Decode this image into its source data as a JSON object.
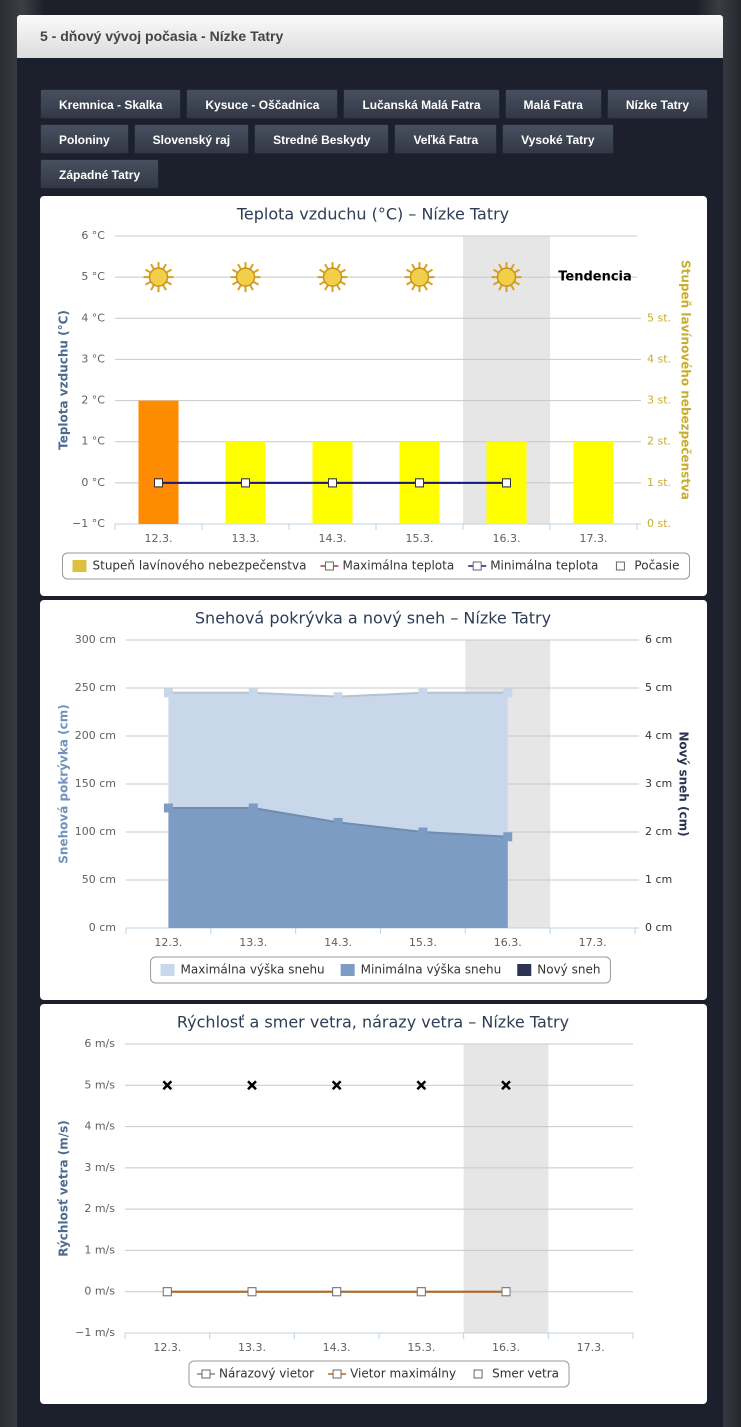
{
  "header": {
    "title": "5 - dňový vývoj počasia - Nízke Tatry"
  },
  "buttons": [
    "Kremnica - Skalka",
    "Kysuce - Oščadnica",
    "Lučanská Malá Fatra",
    "Malá Fatra",
    "Nízke Tatry",
    "Poloniny",
    "Slovenský raj",
    "Stredné Beskydy",
    "Veľká Fatra",
    "Vysoké Tatry",
    "Západné Tatry"
  ],
  "chart_data": [
    {
      "type": "combo",
      "title": "Teplota vzduchu (°C) – Nízke Tatry",
      "y_axis_title": "Teplota vzduchu (°C)",
      "y2_axis_title": "Stupeň lavínového nebezpečenstva",
      "annotation": "Tendencia",
      "plot_band": "16.3.",
      "grid": true,
      "legend": "bottom",
      "categories": [
        "12.3.",
        "13.3.",
        "14.3.",
        "15.3.",
        "16.3.",
        "17.3."
      ],
      "ylim": [
        -1,
        6
      ],
      "yticks": [
        {
          "value": -1,
          "label": "−1 °C"
        },
        {
          "value": 0,
          "label": "0 °C"
        },
        {
          "value": 1,
          "label": "1 °C"
        },
        {
          "value": 2,
          "label": "2 °C"
        },
        {
          "value": 3,
          "label": "3 °C"
        },
        {
          "value": 4,
          "label": "4 °C"
        },
        {
          "value": 5,
          "label": "5 °C"
        },
        {
          "value": 6,
          "label": "6 °C"
        }
      ],
      "y2lim": [
        0,
        7
      ],
      "y2ticks": [
        {
          "value": 0,
          "label": "0 st."
        },
        {
          "value": 1,
          "label": "1 st."
        },
        {
          "value": 2,
          "label": "2 st."
        },
        {
          "value": 3,
          "label": "3 st."
        },
        {
          "value": 4,
          "label": "4 st."
        },
        {
          "value": 5,
          "label": "5 st."
        }
      ],
      "series": [
        {
          "name": "Stupeň lavínového nebezpečenstva",
          "type": "column",
          "axis": "y2",
          "color": "#dcc13c",
          "colors": [
            "#ff8c00",
            "#ffff00",
            "#ffff00",
            "#ffff00",
            "#ffff00",
            "#ffff00"
          ],
          "values": [
            3,
            2,
            2,
            2,
            2,
            2
          ]
        },
        {
          "name": "Maximálna teplota",
          "type": "line",
          "color": "#b03a3a",
          "values": [
            0,
            0,
            0,
            0,
            0,
            null
          ]
        },
        {
          "name": "Minimálna teplota",
          "type": "line",
          "color": "#1c1c80",
          "values": [
            0,
            0,
            0,
            0,
            0,
            null
          ]
        },
        {
          "name": "Počasie",
          "type": "icon",
          "color": "#f2cf4a",
          "values": [
            5,
            5,
            5,
            5,
            5,
            null
          ]
        }
      ]
    },
    {
      "type": "combo",
      "title": "Snehová pokrývka a nový sneh – Nízke Tatry",
      "y_axis_title": "Snehová pokrývka (cm)",
      "y2_axis_title": "Nový sneh (cm)",
      "plot_band": "16.3.",
      "grid": true,
      "legend": "bottom",
      "categories": [
        "12.3.",
        "13.3.",
        "14.3.",
        "15.3.",
        "16.3.",
        "17.3."
      ],
      "ylim": [
        0,
        300
      ],
      "yticks": [
        {
          "value": 0,
          "label": "0 cm"
        },
        {
          "value": 50,
          "label": "50 cm"
        },
        {
          "value": 100,
          "label": "100 cm"
        },
        {
          "value": 150,
          "label": "150 cm"
        },
        {
          "value": 200,
          "label": "200 cm"
        },
        {
          "value": 250,
          "label": "250 cm"
        },
        {
          "value": 300,
          "label": "300 cm"
        }
      ],
      "y2lim": [
        0,
        6
      ],
      "y2ticks": [
        {
          "value": 0,
          "label": "0 cm"
        },
        {
          "value": 1,
          "label": "1 cm"
        },
        {
          "value": 2,
          "label": "2 cm"
        },
        {
          "value": 3,
          "label": "3 cm"
        },
        {
          "value": 4,
          "label": "4 cm"
        },
        {
          "value": 5,
          "label": "5 cm"
        },
        {
          "value": 6,
          "label": "6 cm"
        }
      ],
      "series": [
        {
          "name": "Maximálna výška snehu",
          "type": "area",
          "color": "#c8d8ea",
          "values": [
            245,
            245,
            241,
            245,
            245,
            null
          ]
        },
        {
          "name": "Minimálna výška snehu",
          "type": "area",
          "color": "#7c9cc3",
          "values": [
            125,
            125,
            110,
            100,
            95,
            null
          ]
        },
        {
          "name": "Nový sneh",
          "type": "column",
          "axis": "y2",
          "color": "#2b3553",
          "values": [
            0,
            0,
            0,
            0,
            0,
            null
          ]
        }
      ]
    },
    {
      "type": "combo",
      "title": "Rýchlosť a smer vetra, nárazy vetra – Nízke Tatry",
      "y_axis_title": "Rýchlosť vetra (m/s)",
      "plot_band": "16.3.",
      "grid": true,
      "legend": "bottom",
      "categories": [
        "12.3.",
        "13.3.",
        "14.3.",
        "15.3.",
        "16.3.",
        "17.3."
      ],
      "ylim": [
        -1,
        6
      ],
      "yticks": [
        {
          "value": -1,
          "label": "−1 m/s"
        },
        {
          "value": 0,
          "label": "0 m/s"
        },
        {
          "value": 1,
          "label": "1 m/s"
        },
        {
          "value": 2,
          "label": "2 m/s"
        },
        {
          "value": 3,
          "label": "3 m/s"
        },
        {
          "value": 4,
          "label": "4 m/s"
        },
        {
          "value": 5,
          "label": "5 m/s"
        },
        {
          "value": 6,
          "label": "6 m/s"
        }
      ],
      "series": [
        {
          "name": "Nárazový vietor",
          "type": "line",
          "color": "#8a8a8a",
          "values": [
            0,
            0,
            0,
            0,
            0,
            null
          ]
        },
        {
          "name": "Vietor maximálny",
          "type": "line",
          "color": "#b8691f",
          "values": [
            0,
            0,
            0,
            0,
            0,
            null
          ]
        },
        {
          "name": "Smer vetra",
          "type": "cross",
          "color": "#000000",
          "values": [
            5,
            5,
            5,
            5,
            5,
            null
          ]
        }
      ]
    }
  ]
}
